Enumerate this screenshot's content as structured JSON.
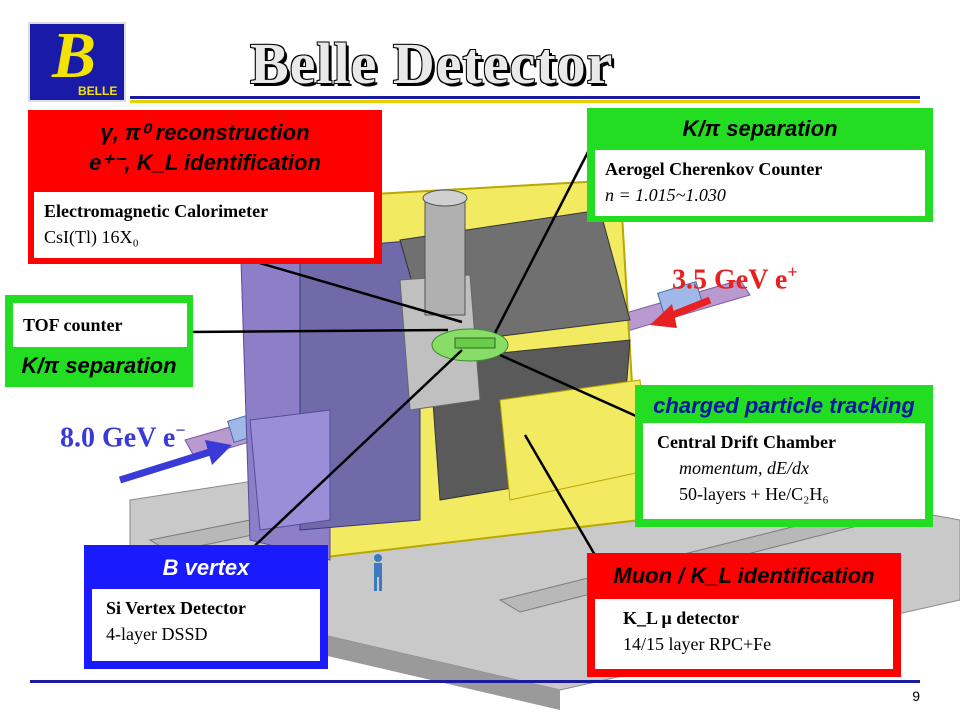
{
  "logo": {
    "letter": "B",
    "text": "BELLE"
  },
  "title": "Belle Detector",
  "page_number": "9",
  "beams": {
    "positron": "3.5 GeV e",
    "positron_sup": "+",
    "electron": "8.0 GeV e",
    "electron_sup": "−"
  },
  "ecl": {
    "header_line1": "γ, π⁰ reconstruction",
    "header_line2": "e⁺⁻, K_L identification",
    "name": "Electromagnetic Calorimeter",
    "detail": "CsI(Tl) 16X₀"
  },
  "acc": {
    "header": "K/π  separation",
    "name": "Aerogel Cherenkov Counter",
    "detail": "n = 1.015~1.030"
  },
  "tof": {
    "name": "TOF counter",
    "header": "K/π separation"
  },
  "cdc": {
    "header": "charged particle tracking",
    "name": "Central Drift Chamber",
    "detail1": "momentum, dE/dx",
    "detail2": "50-layers + He/C₂H₆"
  },
  "svd": {
    "header": "B vertex",
    "name": "Si Vertex Detector",
    "detail": "4-layer DSSD"
  },
  "klm": {
    "header": "Muon / K_L  identification",
    "name": "K_L  μ detector",
    "detail": "14/15 layer RPC+Fe"
  },
  "colors": {
    "red": "#ff0000",
    "green": "#22dd22",
    "blue": "#1a1aff",
    "yellow": "#f5e400",
    "navy": "#1a1aa0"
  }
}
